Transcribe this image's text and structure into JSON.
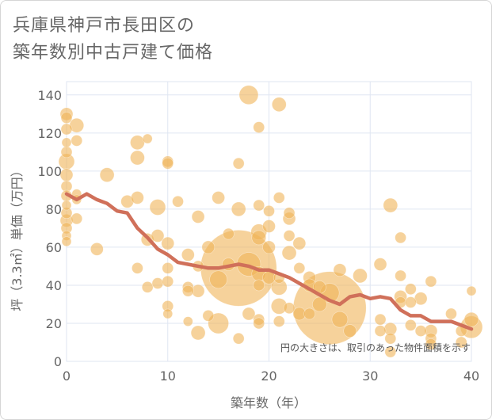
{
  "chart_data": {
    "type": "scatter",
    "title_lines": [
      "兵庫県神戸市長田区の",
      "築年数別中古戸建て価格"
    ],
    "xlabel": "築年数（年）",
    "ylabel": "坪（3.3㎡）単価（万円）",
    "xlim": [
      0,
      40
    ],
    "ylim": [
      0,
      147
    ],
    "xticks": [
      0,
      10,
      20,
      30,
      40
    ],
    "yticks": [
      0,
      20,
      40,
      60,
      80,
      100,
      120,
      140
    ],
    "note": "円の大きさは、取引のあった物件面積を示す",
    "colors": {
      "bubble": "#f0b458",
      "line": "#d0705a",
      "grid": "#dfe6f2",
      "text": "#666666"
    },
    "trend_line": {
      "x": [
        0,
        1,
        2,
        3,
        4,
        5,
        6,
        7,
        8,
        9,
        10,
        11,
        12,
        13,
        14,
        15,
        16,
        17,
        18,
        19,
        20,
        21,
        22,
        23,
        24,
        25,
        26,
        27,
        28,
        29,
        30,
        31,
        32,
        33,
        34,
        35,
        36,
        37,
        38,
        39,
        40
      ],
      "y": [
        88,
        85,
        88,
        85,
        83,
        79,
        78,
        70,
        65,
        59,
        56,
        52,
        51,
        50,
        49,
        49,
        50,
        51,
        50,
        48,
        48,
        46,
        44,
        41,
        38,
        35,
        32,
        30,
        34,
        35,
        33,
        34,
        33,
        27,
        24,
        24,
        21,
        21,
        21,
        19,
        17
      ]
    },
    "points": [
      {
        "x": 0,
        "y": 130,
        "s": 8
      },
      {
        "x": 0,
        "y": 128,
        "s": 7
      },
      {
        "x": 0,
        "y": 122,
        "s": 7
      },
      {
        "x": 0,
        "y": 115,
        "s": 6
      },
      {
        "x": 0,
        "y": 110,
        "s": 7
      },
      {
        "x": 0,
        "y": 105,
        "s": 10
      },
      {
        "x": 0,
        "y": 98,
        "s": 8
      },
      {
        "x": 0,
        "y": 92,
        "s": 7
      },
      {
        "x": 0,
        "y": 87,
        "s": 7
      },
      {
        "x": 0,
        "y": 82,
        "s": 6
      },
      {
        "x": 0,
        "y": 78,
        "s": 7
      },
      {
        "x": 0,
        "y": 74,
        "s": 8
      },
      {
        "x": 0,
        "y": 70,
        "s": 7
      },
      {
        "x": 0,
        "y": 66,
        "s": 6
      },
      {
        "x": 0,
        "y": 63,
        "s": 6
      },
      {
        "x": 1,
        "y": 124,
        "s": 9
      },
      {
        "x": 1,
        "y": 116,
        "s": 7
      },
      {
        "x": 1,
        "y": 88,
        "s": 6
      },
      {
        "x": 1,
        "y": 85,
        "s": 6
      },
      {
        "x": 1,
        "y": 75,
        "s": 7
      },
      {
        "x": 4,
        "y": 98,
        "s": 9
      },
      {
        "x": 3,
        "y": 59,
        "s": 8
      },
      {
        "x": 6,
        "y": 84,
        "s": 8
      },
      {
        "x": 7,
        "y": 115,
        "s": 9
      },
      {
        "x": 7,
        "y": 107,
        "s": 9
      },
      {
        "x": 8,
        "y": 117,
        "s": 6
      },
      {
        "x": 7,
        "y": 86,
        "s": 8
      },
      {
        "x": 7,
        "y": 49,
        "s": 7
      },
      {
        "x": 8,
        "y": 64,
        "s": 8
      },
      {
        "x": 8,
        "y": 39,
        "s": 7
      },
      {
        "x": 9,
        "y": 81,
        "s": 10
      },
      {
        "x": 9,
        "y": 66,
        "s": 8
      },
      {
        "x": 9,
        "y": 41,
        "s": 7
      },
      {
        "x": 10,
        "y": 105,
        "s": 7
      },
      {
        "x": 10,
        "y": 104,
        "s": 7
      },
      {
        "x": 10,
        "y": 62,
        "s": 8
      },
      {
        "x": 10,
        "y": 49,
        "s": 7
      },
      {
        "x": 10,
        "y": 42,
        "s": 7
      },
      {
        "x": 10,
        "y": 29,
        "s": 7
      },
      {
        "x": 10,
        "y": 25,
        "s": 6
      },
      {
        "x": 11,
        "y": 84,
        "s": 7
      },
      {
        "x": 12,
        "y": 56,
        "s": 8
      },
      {
        "x": 12,
        "y": 39,
        "s": 7
      },
      {
        "x": 12,
        "y": 37,
        "s": 7
      },
      {
        "x": 12,
        "y": 21,
        "s": 6
      },
      {
        "x": 13,
        "y": 76,
        "s": 8
      },
      {
        "x": 13,
        "y": 50,
        "s": 7
      },
      {
        "x": 13,
        "y": 37,
        "s": 8
      },
      {
        "x": 13,
        "y": 15,
        "s": 9
      },
      {
        "x": 14,
        "y": 60,
        "s": 8
      },
      {
        "x": 14,
        "y": 24,
        "s": 7
      },
      {
        "x": 15,
        "y": 86,
        "s": 8
      },
      {
        "x": 15,
        "y": 43,
        "s": 11
      },
      {
        "x": 15,
        "y": 20,
        "s": 13
      },
      {
        "x": 16,
        "y": 67,
        "s": 7
      },
      {
        "x": 16,
        "y": 51,
        "s": 8
      },
      {
        "x": 17,
        "y": 104,
        "s": 7
      },
      {
        "x": 17,
        "y": 80,
        "s": 9
      },
      {
        "x": 17,
        "y": 49,
        "s": 48
      },
      {
        "x": 17,
        "y": 12,
        "s": 7
      },
      {
        "x": 18,
        "y": 140,
        "s": 12
      },
      {
        "x": 18,
        "y": 51,
        "s": 15
      },
      {
        "x": 18,
        "y": 25,
        "s": 8
      },
      {
        "x": 19,
        "y": 123,
        "s": 7
      },
      {
        "x": 19,
        "y": 82,
        "s": 7
      },
      {
        "x": 19,
        "y": 68,
        "s": 10
      },
      {
        "x": 19,
        "y": 65,
        "s": 9
      },
      {
        "x": 19,
        "y": 46,
        "s": 9
      },
      {
        "x": 19,
        "y": 40,
        "s": 7
      },
      {
        "x": 19,
        "y": 22,
        "s": 7
      },
      {
        "x": 19,
        "y": 20,
        "s": 7
      },
      {
        "x": 20,
        "y": 79,
        "s": 7
      },
      {
        "x": 20,
        "y": 71,
        "s": 8
      },
      {
        "x": 20,
        "y": 60,
        "s": 8
      },
      {
        "x": 20,
        "y": 44,
        "s": 8
      },
      {
        "x": 21,
        "y": 135,
        "s": 9
      },
      {
        "x": 21,
        "y": 86,
        "s": 7
      },
      {
        "x": 21,
        "y": 44,
        "s": 7
      },
      {
        "x": 21,
        "y": 39,
        "s": 10
      },
      {
        "x": 21,
        "y": 29,
        "s": 10
      },
      {
        "x": 21,
        "y": 21,
        "s": 7
      },
      {
        "x": 22,
        "y": 78,
        "s": 7
      },
      {
        "x": 22,
        "y": 75,
        "s": 8
      },
      {
        "x": 22,
        "y": 66,
        "s": 7
      },
      {
        "x": 22,
        "y": 57,
        "s": 9
      },
      {
        "x": 22,
        "y": 28,
        "s": 7
      },
      {
        "x": 23,
        "y": 62,
        "s": 8
      },
      {
        "x": 23,
        "y": 49,
        "s": 7
      },
      {
        "x": 23,
        "y": 25,
        "s": 8
      },
      {
        "x": 24,
        "y": 44,
        "s": 8
      },
      {
        "x": 24,
        "y": 40,
        "s": 8
      },
      {
        "x": 24,
        "y": 25,
        "s": 7
      },
      {
        "x": 25,
        "y": 39,
        "s": 8
      },
      {
        "x": 26,
        "y": 28,
        "s": 46
      },
      {
        "x": 25,
        "y": 30,
        "s": 9
      },
      {
        "x": 26,
        "y": 36,
        "s": 12
      },
      {
        "x": 27,
        "y": 48,
        "s": 8
      },
      {
        "x": 27,
        "y": 22,
        "s": 10
      },
      {
        "x": 28,
        "y": 16,
        "s": 8
      },
      {
        "x": 29,
        "y": 45,
        "s": 9
      },
      {
        "x": 31,
        "y": 51,
        "s": 8
      },
      {
        "x": 31,
        "y": 22,
        "s": 7
      },
      {
        "x": 31,
        "y": 16,
        "s": 7
      },
      {
        "x": 32,
        "y": 82,
        "s": 9
      },
      {
        "x": 32,
        "y": 17,
        "s": 8
      },
      {
        "x": 32,
        "y": 12,
        "s": 7
      },
      {
        "x": 32,
        "y": 5,
        "s": 7
      },
      {
        "x": 33,
        "y": 65,
        "s": 7
      },
      {
        "x": 33,
        "y": 45,
        "s": 7
      },
      {
        "x": 33,
        "y": 34,
        "s": 8
      },
      {
        "x": 33,
        "y": 31,
        "s": 7
      },
      {
        "x": 34,
        "y": 38,
        "s": 7
      },
      {
        "x": 34,
        "y": 31,
        "s": 7
      },
      {
        "x": 34,
        "y": 19,
        "s": 7
      },
      {
        "x": 35,
        "y": 33,
        "s": 8
      },
      {
        "x": 35,
        "y": 16,
        "s": 7
      },
      {
        "x": 36,
        "y": 42,
        "s": 7
      },
      {
        "x": 36,
        "y": 16,
        "s": 8
      },
      {
        "x": 36,
        "y": 12,
        "s": 7
      },
      {
        "x": 36,
        "y": 9,
        "s": 7
      },
      {
        "x": 38,
        "y": 25,
        "s": 7
      },
      {
        "x": 39,
        "y": 16,
        "s": 7
      },
      {
        "x": 39,
        "y": 10,
        "s": 7
      },
      {
        "x": 40,
        "y": 37,
        "s": 6
      },
      {
        "x": 40,
        "y": 22,
        "s": 9
      },
      {
        "x": 40,
        "y": 18,
        "s": 14
      }
    ]
  }
}
